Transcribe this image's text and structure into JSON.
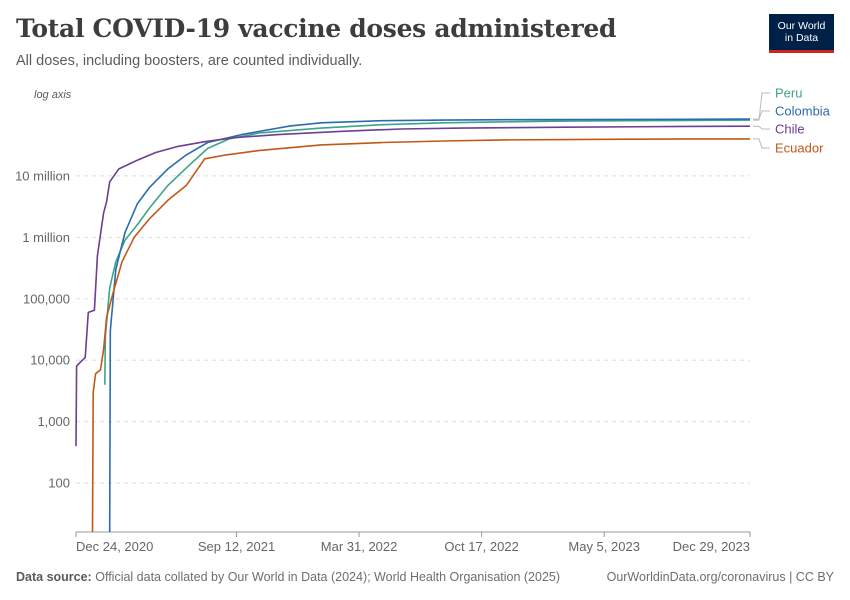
{
  "header": {
    "title": "Total COVID-19 vaccine doses administered",
    "subtitle": "All doses, including boosters, are counted individually."
  },
  "logo": {
    "line1": "Our World",
    "line2": "in Data"
  },
  "footer": {
    "source_label": "Data source:",
    "source_text": "Official data collated by Our World in Data (2024); World Health Organisation (2025)",
    "link": "OurWorldinData.org/coronavirus | CC BY"
  },
  "colors": {
    "Peru": "#3aa58a",
    "Colombia": "#2c6bb0",
    "Chile": "#6d3e91",
    "Ecuador": "#c05917"
  },
  "chart_data": {
    "type": "line",
    "title": "Total COVID-19 vaccine doses administered",
    "scale": "log",
    "axis_note": "log axis",
    "x_start": "2020-12-24",
    "x_end": "2023-12-29",
    "x_ticks": [
      {
        "label": "Dec 24, 2020",
        "day": 0
      },
      {
        "label": "Sep 12, 2021",
        "day": 262
      },
      {
        "label": "Mar 31, 2022",
        "day": 462
      },
      {
        "label": "Oct 17, 2022",
        "day": 662
      },
      {
        "label": "May 5, 2023",
        "day": 862
      },
      {
        "label": "Dec 29, 2023",
        "day": 1100
      }
    ],
    "y_ticks": [
      {
        "label": "100",
        "value": 100
      },
      {
        "label": "1,000",
        "value": 1000
      },
      {
        "label": "10,000",
        "value": 10000
      },
      {
        "label": "100,000",
        "value": 100000
      },
      {
        "label": "1 million",
        "value": 1000000
      },
      {
        "label": "10 million",
        "value": 10000000
      }
    ],
    "ylim": [
      16,
      250000000
    ],
    "series": [
      {
        "name": "Peru",
        "points": [
          [
            47,
            4000
          ],
          [
            48,
            25000
          ],
          [
            55,
            150000
          ],
          [
            65,
            400000
          ],
          [
            80,
            900000
          ],
          [
            100,
            1600000
          ],
          [
            120,
            3000000
          ],
          [
            150,
            7000000
          ],
          [
            185,
            15000000
          ],
          [
            215,
            28000000
          ],
          [
            250,
            40000000
          ],
          [
            300,
            50000000
          ],
          [
            400,
            60000000
          ],
          [
            500,
            68000000
          ],
          [
            600,
            73000000
          ],
          [
            700,
            76000000
          ],
          [
            800,
            78000000
          ],
          [
            900,
            79000000
          ],
          [
            1000,
            80000000
          ],
          [
            1100,
            81000000
          ]
        ]
      },
      {
        "name": "Colombia",
        "points": [
          [
            55,
            16
          ],
          [
            56,
            30000
          ],
          [
            65,
            300000
          ],
          [
            80,
            1200000
          ],
          [
            100,
            3500000
          ],
          [
            120,
            6500000
          ],
          [
            150,
            13000000
          ],
          [
            180,
            22000000
          ],
          [
            215,
            35000000
          ],
          [
            270,
            47000000
          ],
          [
            350,
            65000000
          ],
          [
            400,
            73000000
          ],
          [
            500,
            79000000
          ],
          [
            600,
            81000000
          ],
          [
            700,
            82000000
          ],
          [
            800,
            82500000
          ],
          [
            900,
            83000000
          ],
          [
            1000,
            83500000
          ],
          [
            1100,
            84000000
          ]
        ]
      },
      {
        "name": "Chile",
        "points": [
          [
            0,
            400
          ],
          [
            1,
            8000
          ],
          [
            8,
            9500
          ],
          [
            15,
            11000
          ],
          [
            20,
            60000
          ],
          [
            30,
            65000
          ],
          [
            35,
            500000
          ],
          [
            45,
            2500000
          ],
          [
            50,
            3800000
          ],
          [
            55,
            8000000
          ],
          [
            70,
            13000000
          ],
          [
            100,
            18000000
          ],
          [
            130,
            24000000
          ],
          [
            165,
            30000000
          ],
          [
            210,
            36000000
          ],
          [
            260,
            42000000
          ],
          [
            330,
            47000000
          ],
          [
            430,
            53000000
          ],
          [
            530,
            58000000
          ],
          [
            630,
            60000000
          ],
          [
            800,
            62000000
          ],
          [
            1000,
            64000000
          ],
          [
            1100,
            64500000
          ]
        ]
      },
      {
        "name": "Ecuador",
        "points": [
          [
            27,
            16
          ],
          [
            28,
            3000
          ],
          [
            32,
            6000
          ],
          [
            40,
            7000
          ],
          [
            45,
            15000
          ],
          [
            50,
            50000
          ],
          [
            60,
            120000
          ],
          [
            75,
            400000
          ],
          [
            95,
            1000000
          ],
          [
            120,
            2000000
          ],
          [
            150,
            4000000
          ],
          [
            180,
            7000000
          ],
          [
            210,
            19000000
          ],
          [
            245,
            22000000
          ],
          [
            300,
            26000000
          ],
          [
            400,
            32000000
          ],
          [
            500,
            35000000
          ],
          [
            600,
            37000000
          ],
          [
            700,
            38500000
          ],
          [
            800,
            39000000
          ],
          [
            900,
            39500000
          ],
          [
            1000,
            40000000
          ],
          [
            1100,
            40000000
          ]
        ]
      }
    ],
    "legend": [
      "Peru",
      "Colombia",
      "Chile",
      "Ecuador"
    ]
  }
}
